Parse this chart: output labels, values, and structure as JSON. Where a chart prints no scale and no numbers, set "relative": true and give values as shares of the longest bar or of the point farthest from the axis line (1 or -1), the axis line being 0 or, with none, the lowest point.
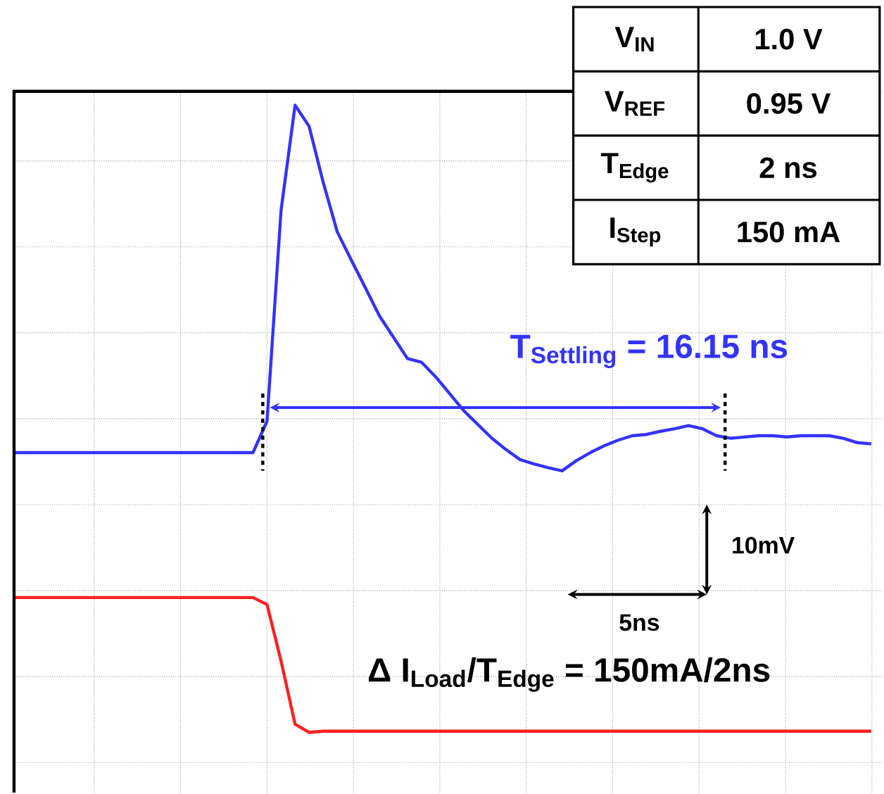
{
  "chart_data": {
    "type": "line",
    "relative": true,
    "grid": true,
    "categories": [
      null,
      null,
      null,
      null,
      null,
      null,
      null,
      null,
      null,
      null,
      null,
      null,
      null,
      null,
      null,
      null,
      null,
      null,
      null,
      null,
      null,
      null,
      null,
      null,
      null,
      null,
      null,
      null,
      null,
      null,
      null,
      null,
      null,
      null,
      null,
      null,
      null,
      null,
      null,
      null,
      null,
      null,
      null,
      null,
      null,
      null,
      null,
      null,
      null,
      null,
      null,
      null,
      null,
      null,
      null,
      null,
      null,
      null,
      null,
      null,
      null,
      null
    ],
    "series": [
      {
        "color": "#3333ff",
        "values": [
          0.446,
          0.446,
          0.446,
          0.446,
          0.446,
          0.446,
          0.446,
          0.446,
          0.446,
          0.446,
          0.446,
          0.446,
          0.446,
          0.446,
          0.446,
          0.446,
          0.446,
          0.446,
          0.496,
          0.832,
          1.0,
          0.966,
          0.877,
          0.798,
          0.753,
          0.709,
          0.664,
          0.63,
          0.596,
          0.59,
          0.567,
          0.54,
          0.513,
          0.491,
          0.469,
          0.451,
          0.435,
          0.428,
          0.422,
          0.417,
          0.433,
          0.446,
          0.457,
          0.466,
          0.473,
          0.475,
          0.48,
          0.484,
          0.489,
          0.484,
          0.473,
          0.469,
          0.471,
          0.473,
          0.473,
          0.471,
          0.473,
          0.473,
          0.473,
          0.469,
          0.462,
          0.46
        ]
      },
      {
        "color": "#ff2020",
        "values": [
          0.215,
          0.215,
          0.215,
          0.215,
          0.215,
          0.215,
          0.215,
          0.215,
          0.215,
          0.215,
          0.215,
          0.215,
          0.215,
          0.215,
          0.215,
          0.215,
          0.215,
          0.215,
          0.204,
          0.114,
          0.013,
          0.0,
          0.002,
          0.002,
          0.002,
          0.002,
          0.002,
          0.002,
          0.002,
          0.002,
          0.002,
          0.002,
          0.002,
          0.002,
          0.002,
          0.002,
          0.002,
          0.002,
          0.002,
          0.002,
          0.002,
          0.002,
          0.002,
          0.002,
          0.002,
          0.002,
          0.002,
          0.002,
          0.002,
          0.002,
          0.002,
          0.002,
          0.002,
          0.002,
          0.002,
          0.002,
          0.002,
          0.002,
          0.002,
          0.002,
          0.002,
          0.002
        ]
      }
    ],
    "annotations": [
      "V$_{IN}$",
      "1.0 V",
      "V$_{REF}$",
      "0.95 V",
      "T$_{Edge}$",
      "2 ns",
      "I$_{Step}$",
      "150 mA",
      "T$_{Settling}$ =  16.15 ns",
      "10mV",
      "5ns",
      "Δ I$_{Load}$/T$_{Edge}$ = 150mA/2ns"
    ]
  }
}
